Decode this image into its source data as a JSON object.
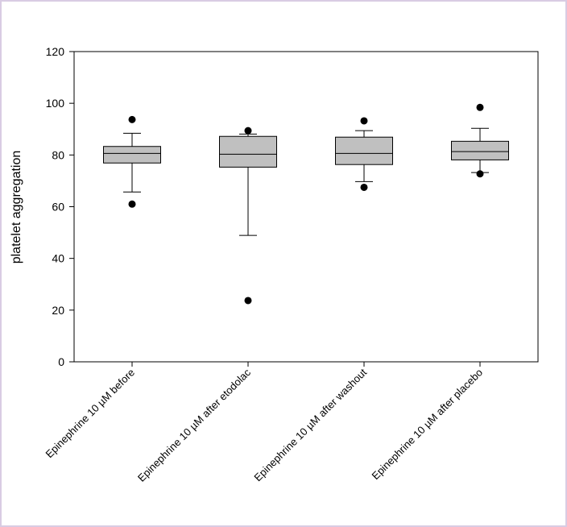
{
  "chart_data": {
    "type": "box",
    "title": "",
    "xlabel": "",
    "ylabel": "platelet aggregation",
    "ylim": [
      0,
      120
    ],
    "yticks": [
      0,
      20,
      40,
      60,
      80,
      100,
      120
    ],
    "grid": false,
    "box_color": "#c0c0c0",
    "categories": [
      "Epinephrine 10 µM before",
      "Epinephrine 10 µM  after etodolac",
      "Epinephrine 10 µM after washout",
      "Epinephrine 10 µM after placebo"
    ],
    "boxes": [
      {
        "whisker_low": 65.7,
        "q1": 76.9,
        "median": 80.6,
        "q3": 83.3,
        "whisker_high": 88.4,
        "outliers": [
          93.7,
          61.0
        ]
      },
      {
        "whisker_low": 48.9,
        "q1": 75.3,
        "median": 80.3,
        "q3": 87.2,
        "whisker_high": 88.1,
        "outliers": [
          89.4,
          23.7
        ]
      },
      {
        "whisker_low": 69.7,
        "q1": 76.3,
        "median": 80.6,
        "q3": 86.9,
        "whisker_high": 89.4,
        "outliers": [
          93.2,
          67.5
        ]
      },
      {
        "whisker_low": 73.2,
        "q1": 78.1,
        "median": 81.3,
        "q3": 85.3,
        "whisker_high": 90.3,
        "outliers": [
          98.4,
          72.7
        ]
      }
    ]
  }
}
